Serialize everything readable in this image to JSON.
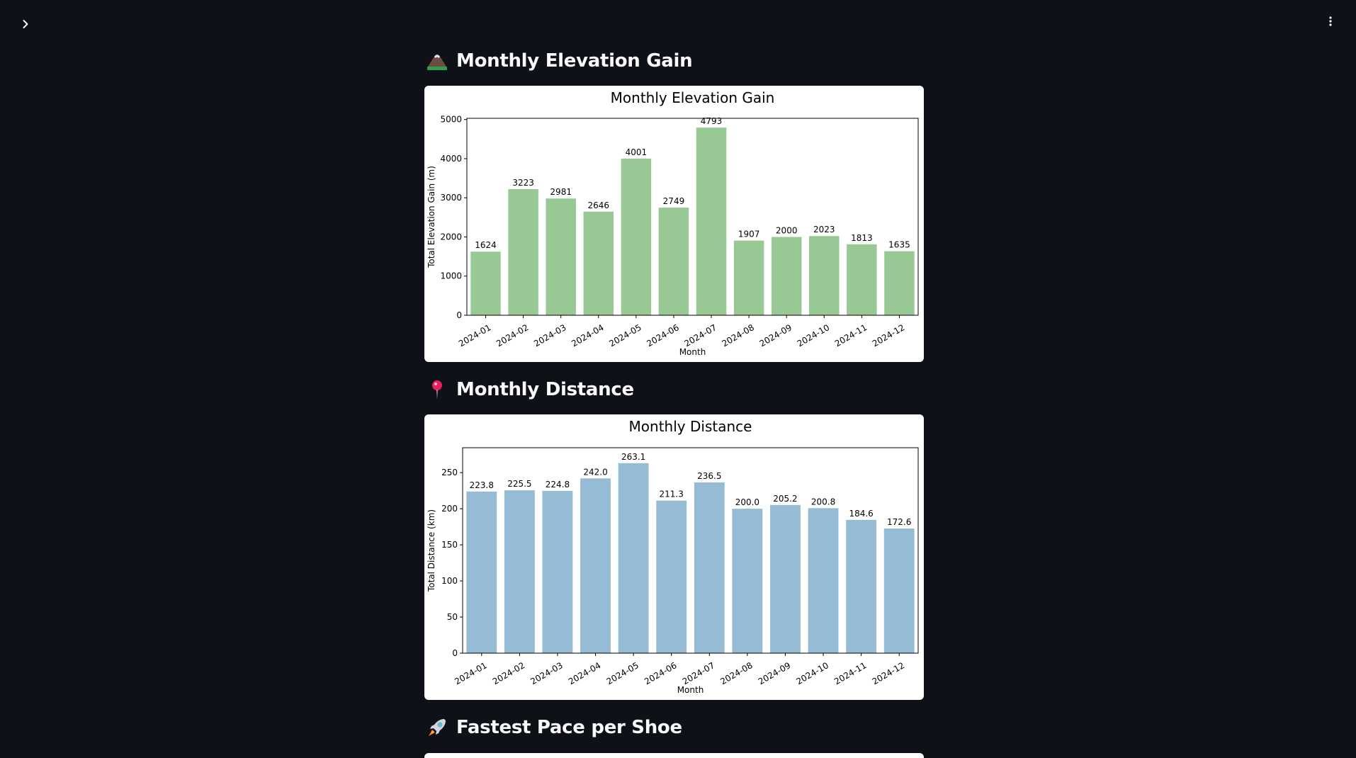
{
  "sections": [
    {
      "emoji": "mountain-icon",
      "title": "Monthly Elevation Gain"
    },
    {
      "emoji": "round-pushpin-icon",
      "title": "Monthly Distance"
    },
    {
      "emoji": "rocket-icon",
      "title": "Fastest Pace per Shoe"
    }
  ],
  "colors": {
    "background": "#0e1117",
    "elevation_bar": "#98c994",
    "distance_bar": "#95bcd4",
    "heading_text": "#fafafa"
  },
  "chart_data": [
    {
      "type": "bar",
      "title": "Monthly Elevation Gain",
      "xlabel": "Month",
      "ylabel": "Total Elevation Gain (m)",
      "categories": [
        "2024-01",
        "2024-02",
        "2024-03",
        "2024-04",
        "2024-05",
        "2024-06",
        "2024-07",
        "2024-08",
        "2024-09",
        "2024-10",
        "2024-11",
        "2024-12"
      ],
      "values": [
        1624,
        3223,
        2981,
        2646,
        4001,
        2749,
        4793,
        1907,
        2000,
        2023,
        1813,
        1635
      ],
      "value_labels": [
        "1624",
        "3223",
        "2981",
        "2646",
        "4001",
        "2749",
        "4793",
        "1907",
        "2000",
        "2023",
        "1813",
        "1635"
      ],
      "yticks": [
        0,
        1000,
        2000,
        3000,
        4000,
        5000
      ],
      "ylim": [
        0,
        5030
      ],
      "grid": false,
      "color": "#98c994"
    },
    {
      "type": "bar",
      "title": "Monthly Distance",
      "xlabel": "Month",
      "ylabel": "Total Distance (km)",
      "categories": [
        "2024-01",
        "2024-02",
        "2024-03",
        "2024-04",
        "2024-05",
        "2024-06",
        "2024-07",
        "2024-08",
        "2024-09",
        "2024-10",
        "2024-11",
        "2024-12"
      ],
      "values": [
        223.8,
        225.5,
        224.8,
        242.0,
        263.1,
        211.3,
        236.5,
        200.0,
        205.2,
        200.8,
        184.6,
        172.6
      ],
      "value_labels": [
        "223.8",
        "225.5",
        "224.8",
        "242.0",
        "263.1",
        "211.3",
        "236.5",
        "200.0",
        "205.2",
        "200.8",
        "184.6",
        "172.6"
      ],
      "yticks": [
        0,
        50,
        100,
        150,
        200,
        250
      ],
      "ylim": [
        0,
        284.5
      ],
      "grid": false,
      "color": "#95bcd4"
    }
  ]
}
